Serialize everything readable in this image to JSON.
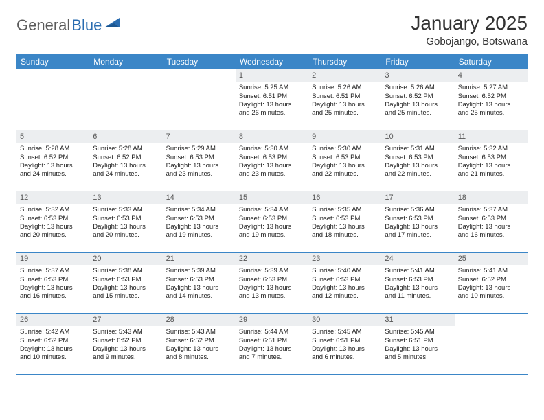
{
  "logo": {
    "textGray": "General",
    "textBlue": "Blue"
  },
  "title": "January 2025",
  "location": "Gobojango, Botswana",
  "colors": {
    "headerBg": "#3b86c7",
    "headerText": "#ffffff",
    "dayNumBg": "#eceef0",
    "borderColor": "#3b86c7",
    "logoGray": "#5a5a5a",
    "logoBlue": "#2a6cb0"
  },
  "dayHeaders": [
    "Sunday",
    "Monday",
    "Tuesday",
    "Wednesday",
    "Thursday",
    "Friday",
    "Saturday"
  ],
  "weeks": [
    [
      {
        "empty": true
      },
      {
        "empty": true
      },
      {
        "empty": true
      },
      {
        "n": "1",
        "sr": "5:25 AM",
        "ss": "6:51 PM",
        "dl1": "13 hours",
        "dl2": "and 26 minutes."
      },
      {
        "n": "2",
        "sr": "5:26 AM",
        "ss": "6:51 PM",
        "dl1": "13 hours",
        "dl2": "and 25 minutes."
      },
      {
        "n": "3",
        "sr": "5:26 AM",
        "ss": "6:52 PM",
        "dl1": "13 hours",
        "dl2": "and 25 minutes."
      },
      {
        "n": "4",
        "sr": "5:27 AM",
        "ss": "6:52 PM",
        "dl1": "13 hours",
        "dl2": "and 25 minutes."
      }
    ],
    [
      {
        "n": "5",
        "sr": "5:28 AM",
        "ss": "6:52 PM",
        "dl1": "13 hours",
        "dl2": "and 24 minutes."
      },
      {
        "n": "6",
        "sr": "5:28 AM",
        "ss": "6:52 PM",
        "dl1": "13 hours",
        "dl2": "and 24 minutes."
      },
      {
        "n": "7",
        "sr": "5:29 AM",
        "ss": "6:53 PM",
        "dl1": "13 hours",
        "dl2": "and 23 minutes."
      },
      {
        "n": "8",
        "sr": "5:30 AM",
        "ss": "6:53 PM",
        "dl1": "13 hours",
        "dl2": "and 23 minutes."
      },
      {
        "n": "9",
        "sr": "5:30 AM",
        "ss": "6:53 PM",
        "dl1": "13 hours",
        "dl2": "and 22 minutes."
      },
      {
        "n": "10",
        "sr": "5:31 AM",
        "ss": "6:53 PM",
        "dl1": "13 hours",
        "dl2": "and 22 minutes."
      },
      {
        "n": "11",
        "sr": "5:32 AM",
        "ss": "6:53 PM",
        "dl1": "13 hours",
        "dl2": "and 21 minutes."
      }
    ],
    [
      {
        "n": "12",
        "sr": "5:32 AM",
        "ss": "6:53 PM",
        "dl1": "13 hours",
        "dl2": "and 20 minutes."
      },
      {
        "n": "13",
        "sr": "5:33 AM",
        "ss": "6:53 PM",
        "dl1": "13 hours",
        "dl2": "and 20 minutes."
      },
      {
        "n": "14",
        "sr": "5:34 AM",
        "ss": "6:53 PM",
        "dl1": "13 hours",
        "dl2": "and 19 minutes."
      },
      {
        "n": "15",
        "sr": "5:34 AM",
        "ss": "6:53 PM",
        "dl1": "13 hours",
        "dl2": "and 19 minutes."
      },
      {
        "n": "16",
        "sr": "5:35 AM",
        "ss": "6:53 PM",
        "dl1": "13 hours",
        "dl2": "and 18 minutes."
      },
      {
        "n": "17",
        "sr": "5:36 AM",
        "ss": "6:53 PM",
        "dl1": "13 hours",
        "dl2": "and 17 minutes."
      },
      {
        "n": "18",
        "sr": "5:37 AM",
        "ss": "6:53 PM",
        "dl1": "13 hours",
        "dl2": "and 16 minutes."
      }
    ],
    [
      {
        "n": "19",
        "sr": "5:37 AM",
        "ss": "6:53 PM",
        "dl1": "13 hours",
        "dl2": "and 16 minutes."
      },
      {
        "n": "20",
        "sr": "5:38 AM",
        "ss": "6:53 PM",
        "dl1": "13 hours",
        "dl2": "and 15 minutes."
      },
      {
        "n": "21",
        "sr": "5:39 AM",
        "ss": "6:53 PM",
        "dl1": "13 hours",
        "dl2": "and 14 minutes."
      },
      {
        "n": "22",
        "sr": "5:39 AM",
        "ss": "6:53 PM",
        "dl1": "13 hours",
        "dl2": "and 13 minutes."
      },
      {
        "n": "23",
        "sr": "5:40 AM",
        "ss": "6:53 PM",
        "dl1": "13 hours",
        "dl2": "and 12 minutes."
      },
      {
        "n": "24",
        "sr": "5:41 AM",
        "ss": "6:53 PM",
        "dl1": "13 hours",
        "dl2": "and 11 minutes."
      },
      {
        "n": "25",
        "sr": "5:41 AM",
        "ss": "6:52 PM",
        "dl1": "13 hours",
        "dl2": "and 10 minutes."
      }
    ],
    [
      {
        "n": "26",
        "sr": "5:42 AM",
        "ss": "6:52 PM",
        "dl1": "13 hours",
        "dl2": "and 10 minutes."
      },
      {
        "n": "27",
        "sr": "5:43 AM",
        "ss": "6:52 PM",
        "dl1": "13 hours",
        "dl2": "and 9 minutes."
      },
      {
        "n": "28",
        "sr": "5:43 AM",
        "ss": "6:52 PM",
        "dl1": "13 hours",
        "dl2": "and 8 minutes."
      },
      {
        "n": "29",
        "sr": "5:44 AM",
        "ss": "6:51 PM",
        "dl1": "13 hours",
        "dl2": "and 7 minutes."
      },
      {
        "n": "30",
        "sr": "5:45 AM",
        "ss": "6:51 PM",
        "dl1": "13 hours",
        "dl2": "and 6 minutes."
      },
      {
        "n": "31",
        "sr": "5:45 AM",
        "ss": "6:51 PM",
        "dl1": "13 hours",
        "dl2": "and 5 minutes."
      },
      {
        "empty": true
      }
    ]
  ],
  "labels": {
    "sunrisePrefix": "Sunrise: ",
    "sunsetPrefix": "Sunset: ",
    "daylightPrefix": "Daylight: "
  }
}
